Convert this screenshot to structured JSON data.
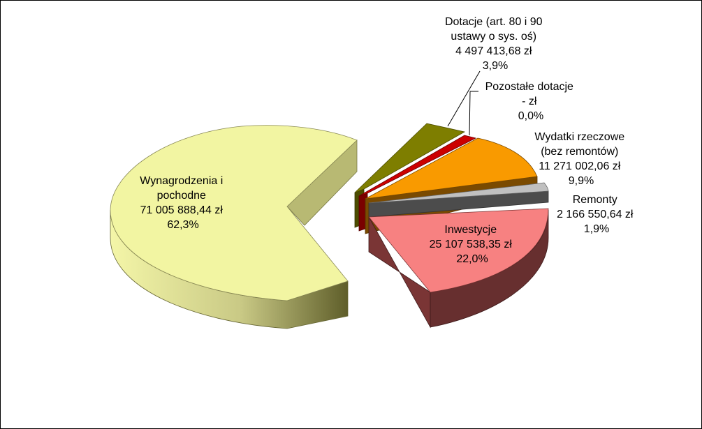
{
  "chart_data": {
    "type": "pie",
    "title": "",
    "slices": [
      {
        "label": "Wynagrodzenia i pochodne",
        "amount": 71005888.44,
        "percent": 62.3,
        "label_lines": [
          "Wynagrodzenia i",
          "pochodne",
          "71 005 888,44 zł",
          "62,3%"
        ],
        "color_top": "#f3f4a2",
        "color_side": "#a3a25c",
        "color_inner": "#b6b772"
      },
      {
        "label": "Dotacje (art. 80 i 90 ustawy o sys. oś)",
        "amount": 4497413.68,
        "percent": 3.9,
        "label_lines": [
          "Dotacje (art. 80 i 90",
          "ustawy  o sys. oś)",
          "4 497 413,68 zł",
          "3,9%"
        ],
        "color_top": "#7e7e00",
        "color_side": "#4c4c00",
        "color_inner": "#5c5c00"
      },
      {
        "label": "Pozostałe dotacje",
        "amount": 0,
        "percent": 0.0,
        "label_lines": [
          "Pozostałe dotacje",
          "-   zł",
          "0,0%"
        ],
        "color_top": "#cc0000",
        "color_side": "#7a0000",
        "color_inner": "#8a0000"
      },
      {
        "label": "Wydatki rzeczowe (bez remontów)",
        "amount": 11271002.06,
        "percent": 9.9,
        "label_lines": [
          "Wydatki rzeczowe",
          "(bez remontów)",
          "11 271 002,06 zł",
          "9,9%"
        ],
        "color_top": "#f99a00",
        "color_side": "#7a4a00",
        "color_inner": "#8a4d00"
      },
      {
        "label": "Remonty",
        "amount": 2166550.64,
        "percent": 1.9,
        "label_lines": [
          "Remonty",
          "2 166 550,64 zł",
          "1,9%"
        ],
        "color_top": "#c0c0c0",
        "color_side": "#4c4c4c",
        "color_inner": "#555555"
      },
      {
        "label": "Inwestycje",
        "amount": 25107538.35,
        "percent": 22.0,
        "label_lines": [
          "Inwestycje",
          "25 107 538,35 zł",
          "22,0%"
        ],
        "color_top": "#f68080",
        "color_side": "#672f2f",
        "color_inner": "#7a3535"
      }
    ]
  }
}
